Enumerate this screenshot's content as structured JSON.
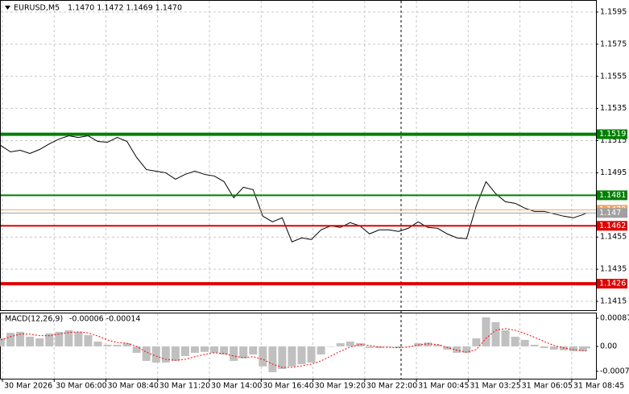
{
  "chart_data": [
    {
      "type": "line",
      "title": "EURUSD,M5",
      "subtitle": "1.1470 1.1472 1.1469 1.1470",
      "color": "#000000",
      "x": [
        0,
        6,
        12,
        18,
        24,
        30,
        36,
        42,
        48,
        54,
        60,
        66,
        72,
        78,
        84,
        90,
        96,
        102,
        108,
        114,
        120,
        126,
        132,
        138,
        144,
        150,
        156,
        162,
        168,
        174,
        180,
        186,
        192,
        198,
        204,
        210,
        216,
        222,
        228,
        234,
        240,
        246,
        252,
        258,
        264,
        270,
        276,
        282,
        288,
        294,
        300,
        306,
        312,
        318,
        324,
        330,
        336,
        342,
        348,
        354,
        360,
        362
      ],
      "values": [
        1.1512,
        1.1508,
        1.1509,
        1.1507,
        1.15095,
        1.1513,
        1.1516,
        1.1518,
        1.1517,
        1.1518,
        1.15145,
        1.1514,
        1.1517,
        1.15145,
        1.15045,
        1.1497,
        1.1496,
        1.1495,
        1.1491,
        1.1494,
        1.1496,
        1.1494,
        1.1493,
        1.14895,
        1.14795,
        1.1486,
        1.14845,
        1.1468,
        1.14645,
        1.1467,
        1.1452,
        1.14545,
        1.14535,
        1.14595,
        1.1462,
        1.1461,
        1.1464,
        1.1462,
        1.1457,
        1.14595,
        1.14595,
        1.14585,
        1.14605,
        1.14645,
        1.1461,
        1.14605,
        1.1457,
        1.14545,
        1.1454,
        1.14745,
        1.14895,
        1.1482,
        1.1477,
        1.1476,
        1.1473,
        1.1471,
        1.1471,
        1.14695,
        1.1468,
        1.1467,
        1.1469,
        1.147
      ],
      "xlim": [
        0,
        368
      ],
      "ylim": [
        1.14095,
        1.1602
      ],
      "yticks": [
        1.1415,
        1.1435,
        1.1455,
        1.1495,
        1.1515,
        1.1535,
        1.1555,
        1.1575,
        1.1595
      ],
      "grid": true,
      "levels": [
        {
          "value": 1.1519,
          "color": "#008000",
          "width": 4
        },
        {
          "value": 1.1481,
          "color": "#008000",
          "width": 2
        },
        {
          "value": 1.1462,
          "color": "#e00000",
          "width": 2
        },
        {
          "value": 1.1426,
          "color": "#e00000",
          "width": 4
        },
        {
          "value": 1.1472,
          "color": "#f4a460",
          "width": 1
        },
        {
          "value": 1.147,
          "color": "#a0a0a0",
          "width": 1
        }
      ]
    },
    {
      "type": "macd",
      "title": "MACD(12,26,9)",
      "subtitle": "-0.00006 -0.00014",
      "x": [
        0,
        6,
        12,
        18,
        24,
        30,
        36,
        42,
        48,
        54,
        60,
        66,
        72,
        78,
        84,
        90,
        96,
        102,
        108,
        114,
        120,
        126,
        132,
        138,
        144,
        150,
        156,
        162,
        168,
        174,
        180,
        186,
        192,
        198,
        204,
        210,
        216,
        222,
        228,
        234,
        240,
        246,
        252,
        258,
        264,
        270,
        276,
        282,
        288,
        294,
        300,
        306,
        312,
        318,
        324,
        330,
        336,
        342,
        348,
        354,
        360,
        362
      ],
      "series": [
        {
          "kind": "bar",
          "color": "#c0c0c0",
          "values": [
            0.00025,
            0.00042,
            0.00045,
            0.0003,
            0.00025,
            0.0004,
            0.00045,
            0.0005,
            0.00045,
            0.00035,
            0.00015,
            5e-05,
            5e-05,
            0.0001,
            -0.0002,
            -0.00045,
            -0.0005,
            -0.0005,
            -0.00045,
            -0.0003,
            -0.0002,
            -0.00017,
            -0.0002,
            -0.00025,
            -0.00045,
            -0.00037,
            -0.00025,
            -0.00062,
            -0.0008,
            -0.0007,
            -0.00062,
            -0.00055,
            -0.0005,
            -0.00025,
            0,
            0.0001,
            0.00015,
            0.0001,
            -5e-05,
            -5e-05,
            -2e-05,
            -5e-05,
            0,
            0.0001,
            0.00012,
            5e-05,
            -0.0001,
            -0.0002,
            -0.0002,
            0.00025,
            0.0009,
            0.00075,
            0.0005,
            0.0003,
            0.0002,
            5e-05,
            -5e-05,
            -0.0001,
            -0.00012,
            -0.00015,
            -0.00015,
            -6e-05
          ]
        },
        {
          "kind": "line",
          "color": "#ff0000",
          "values": [
            0.0002,
            0.0003,
            0.00038,
            0.00038,
            0.00033,
            0.00033,
            0.00038,
            0.00043,
            0.00045,
            0.00042,
            0.00032,
            0.0002,
            0.00012,
            0.0001,
            0.0,
            -0.00018,
            -0.0003,
            -0.0004,
            -0.00043,
            -0.0004,
            -0.00032,
            -0.00025,
            -0.0002,
            -0.00022,
            -0.0003,
            -0.00035,
            -0.00032,
            -0.0004,
            -0.00055,
            -0.00065,
            -0.00065,
            -0.0006,
            -0.00055,
            -0.00045,
            -0.0003,
            -0.00015,
            -2e-05,
            6e-05,
            3e-05,
            -2e-05,
            -3e-05,
            -4e-05,
            -2e-05,
            4e-05,
            8e-05,
            6e-05,
            -3e-05,
            -0.00012,
            -0.00018,
            -0.0001,
            0.00025,
            0.0005,
            0.00055,
            0.0005,
            0.0004,
            0.00028,
            0.00015,
            3e-05,
            -5e-05,
            -0.0001,
            -0.00013,
            -0.00014
          ]
        }
      ],
      "xlim": [
        0,
        368
      ],
      "ylim": [
        -0.001,
        0.00102
      ],
      "yticks": [
        -0.00077,
        {
          "value": 0,
          "label": "0.00"
        },
        0.00087
      ],
      "xticks": [
        {
          "value": 1,
          "label": "30 Mar 2026"
        },
        {
          "value": 33,
          "label": "30 Mar 06:00"
        },
        {
          "value": 65,
          "label": "30 Mar 08:40"
        },
        {
          "value": 97,
          "label": "30 Mar 11:20"
        },
        {
          "value": 129,
          "label": "30 Mar 14:00"
        },
        {
          "value": 161,
          "label": "30 Mar 16:40"
        },
        {
          "value": 193,
          "label": "30 Mar 19:20"
        },
        {
          "value": 225,
          "label": "30 Mar 22:00"
        },
        {
          "value": 257,
          "label": "31 Mar 00:45"
        },
        {
          "value": 289,
          "label": "31 Mar 03:25"
        },
        {
          "value": 321,
          "label": "31 Mar 06:05"
        },
        {
          "value": 353,
          "label": "31 Mar 08:45"
        }
      ]
    }
  ]
}
